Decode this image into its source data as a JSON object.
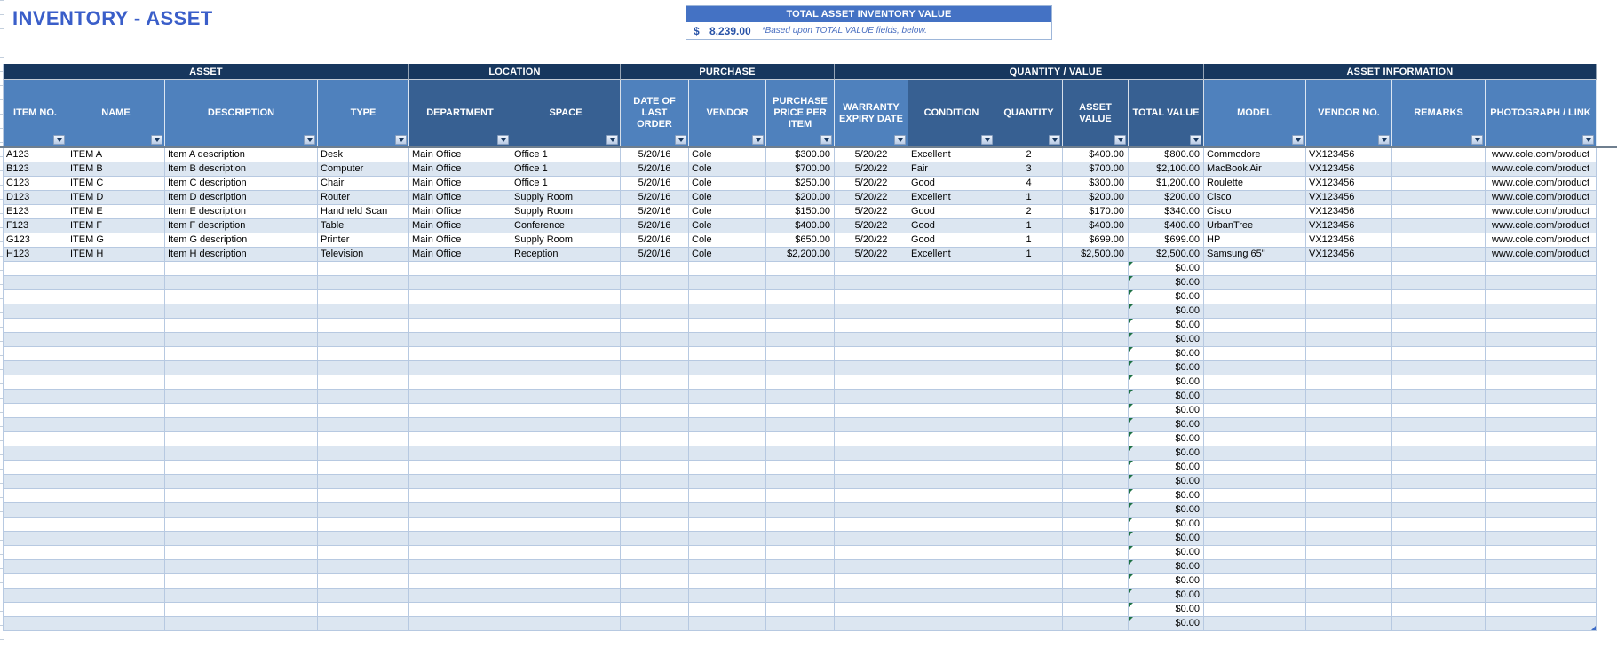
{
  "title": "INVENTORY - ASSET",
  "summary_box": {
    "header": "TOTAL ASSET INVENTORY VALUE",
    "currency_symbol": "$",
    "value": "8,239.00",
    "note": "*Based upon TOTAL VALUE fields, below."
  },
  "colors": {
    "title_blue": "#3A5EC9",
    "summary_bar_blue": "#4472C4",
    "group_band_navy": "#17375E",
    "column_header_light_blue": "#4F81BD",
    "column_header_dark_blue": "#376092",
    "banded_row_blue": "#DCE6F1",
    "grid_line_blue": "#B7C9E1",
    "formula_warning_green": "#1E7145"
  },
  "table": {
    "groups": [
      {
        "label": "ASSET",
        "span": 4
      },
      {
        "label": "LOCATION",
        "span": 2
      },
      {
        "label": "PURCHASE",
        "span": 3
      },
      {
        "label": "",
        "span": 1
      },
      {
        "label": "QUANTITY / VALUE",
        "span": 4
      },
      {
        "label": "ASSET INFORMATION",
        "span": 4
      }
    ],
    "columns": [
      {
        "label": "ITEM NO.",
        "slug": "item-no",
        "shade": "light",
        "align": "left"
      },
      {
        "label": "NAME",
        "slug": "name",
        "shade": "light",
        "align": "left"
      },
      {
        "label": "DESCRIPTION",
        "slug": "description",
        "shade": "light",
        "align": "left"
      },
      {
        "label": "TYPE",
        "slug": "type",
        "shade": "light",
        "align": "left"
      },
      {
        "label": "DEPARTMENT",
        "slug": "department",
        "shade": "dark",
        "align": "left"
      },
      {
        "label": "SPACE",
        "slug": "space",
        "shade": "dark",
        "align": "left"
      },
      {
        "label": "DATE OF LAST ORDER",
        "slug": "date-of-last-order",
        "shade": "light",
        "align": "center"
      },
      {
        "label": "VENDOR",
        "slug": "vendor",
        "shade": "light",
        "align": "left"
      },
      {
        "label": "PURCHASE PRICE PER ITEM",
        "slug": "purchase-price-per-item",
        "shade": "light",
        "align": "right"
      },
      {
        "label": "WARRANTY EXPIRY DATE",
        "slug": "warranty-expiry-date",
        "shade": "light",
        "align": "center"
      },
      {
        "label": "CONDITION",
        "slug": "condition",
        "shade": "dark",
        "align": "left"
      },
      {
        "label": "QUANTITY",
        "slug": "quantity",
        "shade": "dark",
        "align": "center"
      },
      {
        "label": "ASSET VALUE",
        "slug": "asset-value",
        "shade": "dark",
        "align": "right"
      },
      {
        "label": "TOTAL VALUE",
        "slug": "total-value",
        "shade": "dark",
        "align": "right"
      },
      {
        "label": "MODEL",
        "slug": "model",
        "shade": "light",
        "align": "left"
      },
      {
        "label": "VENDOR NO.",
        "slug": "vendor-no",
        "shade": "light",
        "align": "left"
      },
      {
        "label": "REMARKS",
        "slug": "remarks",
        "shade": "light",
        "align": "left"
      },
      {
        "label": "PHOTOGRAPH / LINK",
        "slug": "photograph-link",
        "shade": "light",
        "align": "center"
      }
    ],
    "rows": [
      [
        "A123",
        "ITEM A",
        "Item A description",
        "Desk",
        "Main Office",
        "Office 1",
        "5/20/16",
        "Cole",
        "$300.00",
        "5/20/22",
        "Excellent",
        "2",
        "$400.00",
        "$800.00",
        "Commodore",
        "VX123456",
        "",
        "www.cole.com/product"
      ],
      [
        "B123",
        "ITEM B",
        "Item B description",
        "Computer",
        "Main Office",
        "Office 1",
        "5/20/16",
        "Cole",
        "$700.00",
        "5/20/22",
        "Fair",
        "3",
        "$700.00",
        "$2,100.00",
        "MacBook Air",
        "VX123456",
        "",
        "www.cole.com/product"
      ],
      [
        "C123",
        "ITEM C",
        "Item C description",
        "Chair",
        "Main Office",
        "Office 1",
        "5/20/16",
        "Cole",
        "$250.00",
        "5/20/22",
        "Good",
        "4",
        "$300.00",
        "$1,200.00",
        "Roulette",
        "VX123456",
        "",
        "www.cole.com/product"
      ],
      [
        "D123",
        "ITEM D",
        "Item D description",
        "Router",
        "Main Office",
        "Supply Room",
        "5/20/16",
        "Cole",
        "$200.00",
        "5/20/22",
        "Excellent",
        "1",
        "$200.00",
        "$200.00",
        "Cisco",
        "VX123456",
        "",
        "www.cole.com/product"
      ],
      [
        "E123",
        "ITEM E",
        "Item E description",
        "Handheld Scan",
        "Main Office",
        "Supply Room",
        "5/20/16",
        "Cole",
        "$150.00",
        "5/20/22",
        "Good",
        "2",
        "$170.00",
        "$340.00",
        "Cisco",
        "VX123456",
        "",
        "www.cole.com/product"
      ],
      [
        "F123",
        "ITEM F",
        "Item F description",
        "Table",
        "Main Office",
        "Conference",
        "5/20/16",
        "Cole",
        "$400.00",
        "5/20/22",
        "Good",
        "1",
        "$400.00",
        "$400.00",
        "UrbanTree",
        "VX123456",
        "",
        "www.cole.com/product"
      ],
      [
        "G123",
        "ITEM G",
        "Item G description",
        "Printer",
        "Main Office",
        "Supply Room",
        "5/20/16",
        "Cole",
        "$650.00",
        "5/20/22",
        "Good",
        "1",
        "$699.00",
        "$699.00",
        "HP",
        "VX123456",
        "",
        "www.cole.com/product"
      ],
      [
        "H123",
        "ITEM H",
        "Item H description",
        "Television",
        "Main Office",
        "Reception",
        "5/20/16",
        "Cole",
        "$2,200.00",
        "5/20/22",
        "Excellent",
        "1",
        "$2,500.00",
        "$2,500.00",
        "Samsung 65\"",
        "VX123456",
        "",
        "www.cole.com/product"
      ]
    ],
    "empty_rows": {
      "count": 26,
      "total_value": "$0.00"
    }
  }
}
